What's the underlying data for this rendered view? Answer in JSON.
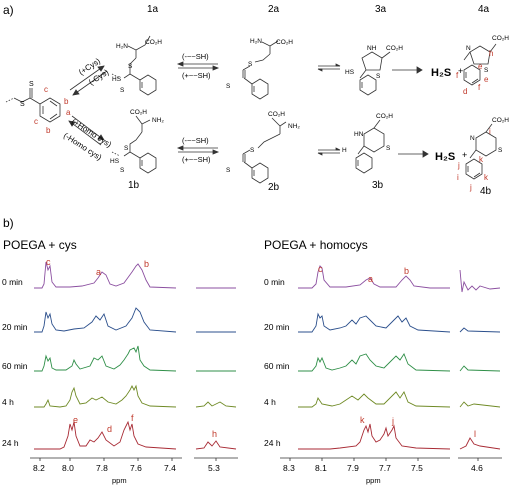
{
  "panel_a": {
    "label": "a)",
    "compounds": {
      "c1a": "1a",
      "c2a": "2a",
      "c3a": "3a",
      "c4a": "4a",
      "c1b": "1b",
      "c2b": "2b",
      "c3b": "3b",
      "c4b": "4b"
    },
    "top_left_arrow_upper": "(+Cys)",
    "top_left_arrow_lower": "(-Cys)",
    "bot_left_arrow_upper": "(+Homo cys)",
    "bot_left_arrow_lower": "(-Homo cys)",
    "thiol_upper": "(-~~SH)",
    "thiol_lower": "(+~~SH)",
    "h2s": "H₂S",
    "plus": "+",
    "atoms": {
      "co2h": "CO₂H",
      "h2n": "H₂N",
      "nh2": "NH₂",
      "nh": "NH",
      "hn": "HN",
      "hs": "HS",
      "s": "S",
      "n": "N",
      "h": "H"
    },
    "proton_labels_1": [
      "c",
      "b",
      "a",
      "c",
      "b"
    ],
    "proton_labels_4a": [
      "h",
      "e",
      "f",
      "d",
      "f",
      "e"
    ],
    "proton_labels_4b": [
      "i",
      "k",
      "j",
      "i",
      "j",
      "k"
    ]
  },
  "panel_b": {
    "label": "b)",
    "left": {
      "title": "POEGA + cys",
      "rows": [
        "0 min",
        "20 min",
        "60 min",
        "4 h",
        "24 h"
      ],
      "colors": [
        "#8b4fa0",
        "#2b4f8c",
        "#2f8f48",
        "#6f8a25",
        "#a82a34"
      ],
      "peaks": [
        "c",
        "a",
        "b",
        "e",
        "d",
        "f",
        "h"
      ],
      "ticks": [
        "8.2",
        "8.0",
        "7.8",
        "7.6",
        "7.4",
        "5.3"
      ],
      "xlabel": "ppm"
    },
    "right": {
      "title": "POEGA + homocys",
      "rows": [
        "0 min",
        "20 min",
        "60 min",
        "4 h",
        "24 h"
      ],
      "colors": [
        "#8b4fa0",
        "#2b4f8c",
        "#2f8f48",
        "#6f8a25",
        "#a82a34"
      ],
      "peaks": [
        "c",
        "a",
        "b",
        "k",
        "j",
        "l"
      ],
      "ticks": [
        "8.3",
        "8.1",
        "7.9",
        "7.7",
        "7.5",
        "4.6"
      ],
      "xlabel": "ppm"
    },
    "peak_label_color": "#c0392b"
  }
}
